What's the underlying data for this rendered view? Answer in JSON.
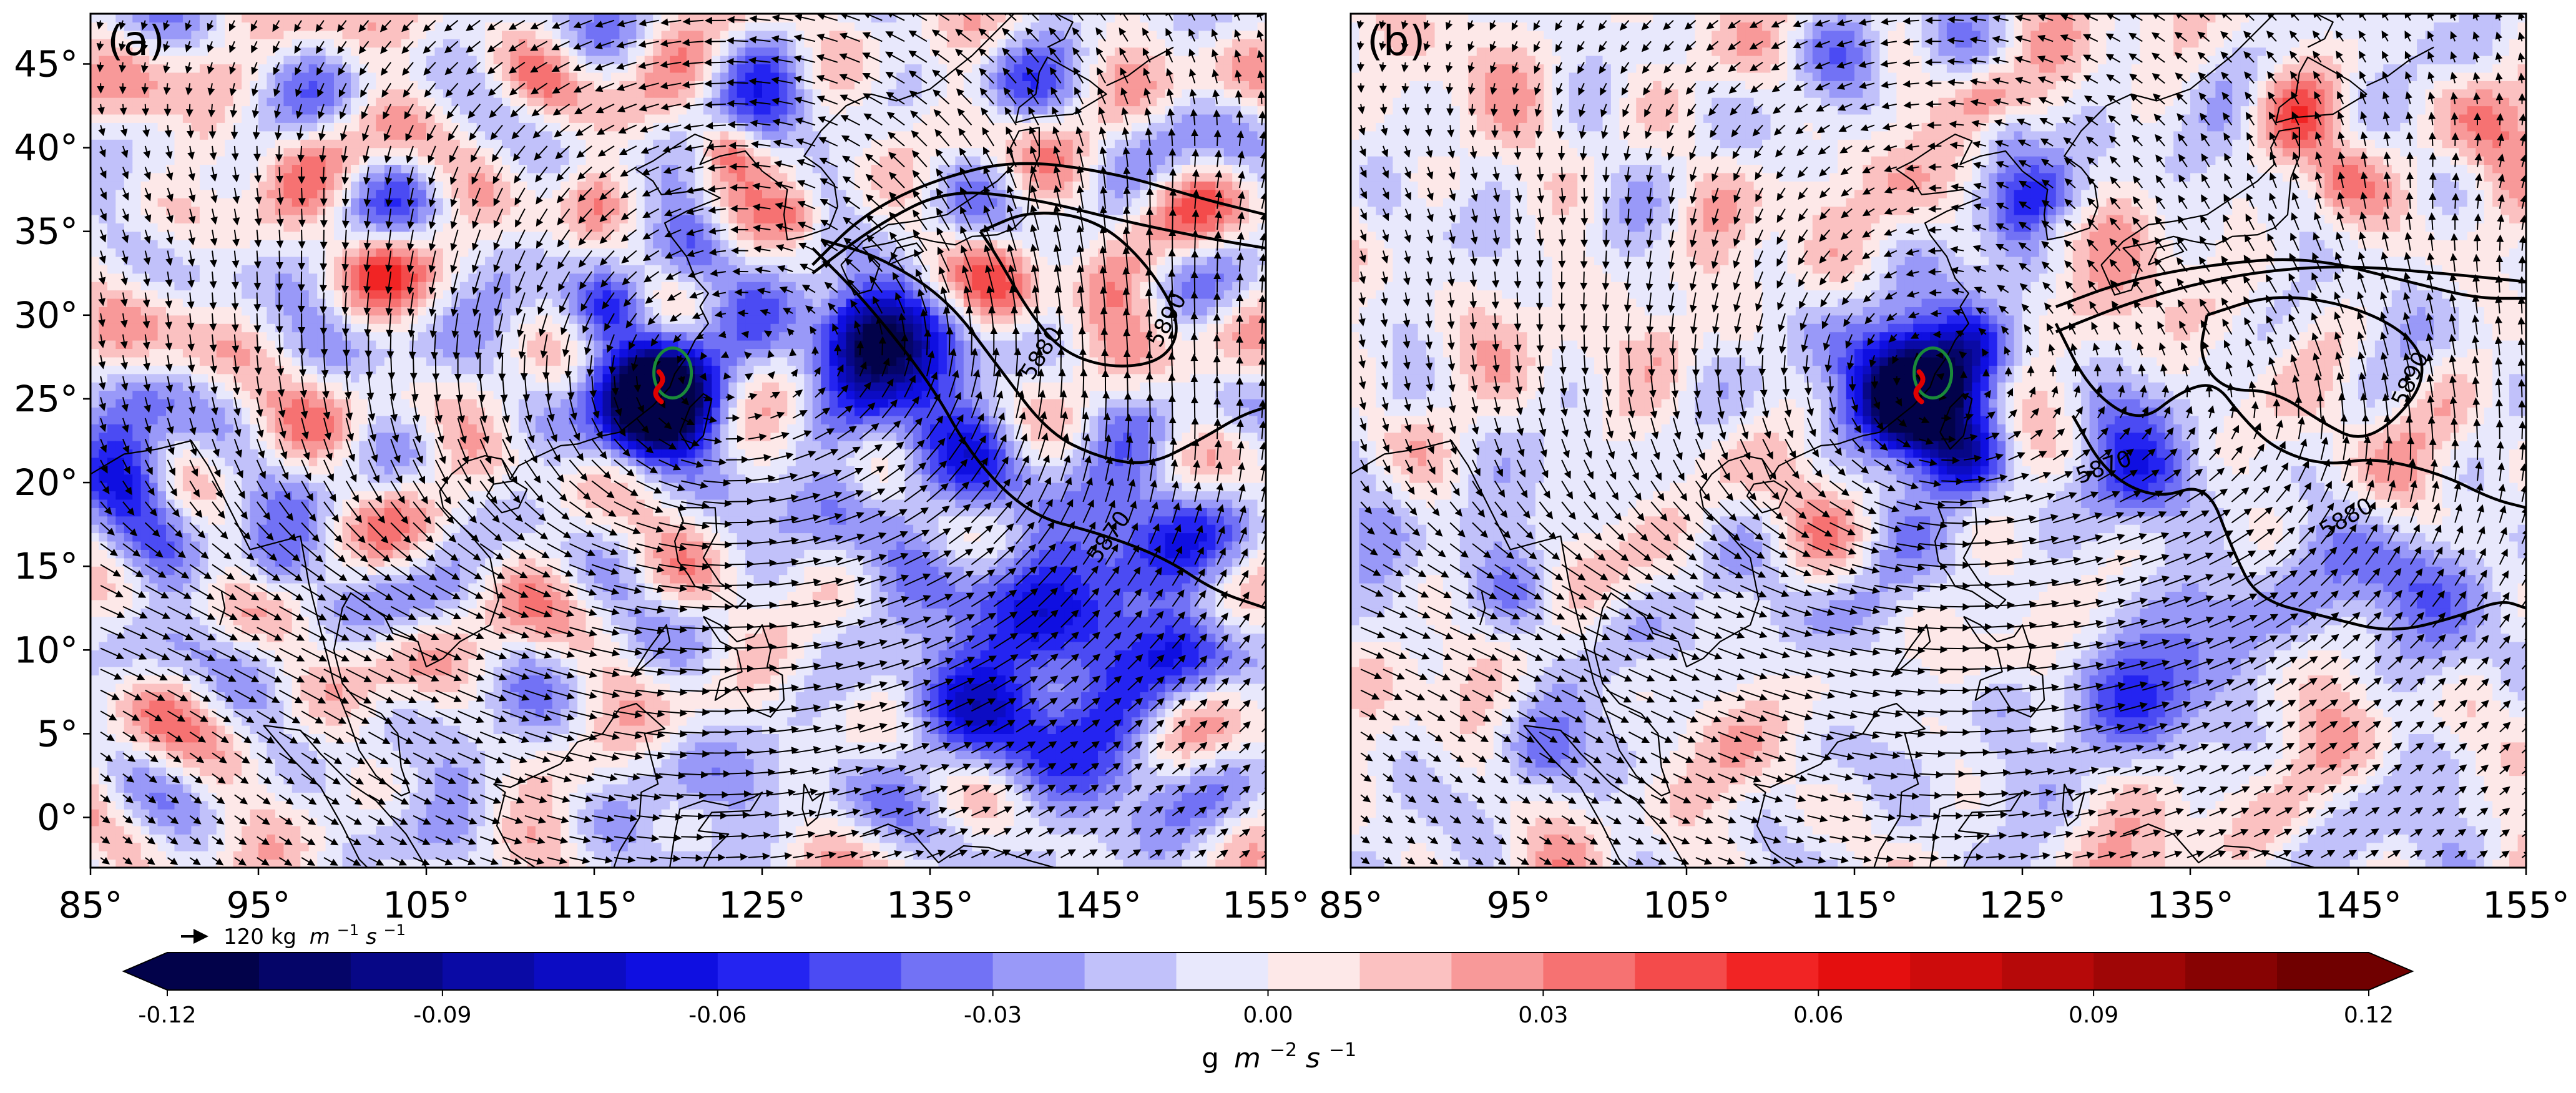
{
  "chart_data": [
    {
      "type": "heatmap",
      "panel_label": "(a)",
      "description_field": "shaded: moisture flux divergence; vectors: vertically integrated moisture flux; contours: geopotential height",
      "x_ticks": [
        "85°",
        "95°",
        "105°",
        "115°",
        "125°",
        "135°",
        "145°",
        "155°"
      ],
      "x_tick_values": [
        85,
        95,
        105,
        115,
        125,
        135,
        145,
        155
      ],
      "y_ticks": [
        "0°",
        "5°",
        "10°",
        "15°",
        "20°",
        "25°",
        "30°",
        "35°",
        "40°",
        "45°"
      ],
      "y_tick_values": [
        0,
        5,
        10,
        15,
        20,
        25,
        30,
        35,
        40,
        45
      ],
      "xlim": [
        85,
        155
      ],
      "ylim": [
        -3,
        48
      ],
      "contour_labels": [
        {
          "text": "5890",
          "lon": 149.5,
          "lat": 29.5,
          "angle": -62
        },
        {
          "text": "5880",
          "lon": 142.0,
          "lat": 27.5,
          "angle": -58
        },
        {
          "text": "5870",
          "lon": 146.0,
          "lat": 16.5,
          "angle": -55
        }
      ],
      "contours": [
        [
          [
            128,
            33
          ],
          [
            131,
            36
          ],
          [
            135,
            38
          ],
          [
            140,
            39.3
          ],
          [
            146,
            38.5
          ],
          [
            151,
            37
          ],
          [
            155,
            36
          ]
        ],
        [
          [
            128,
            32.5
          ],
          [
            132,
            35.5
          ],
          [
            136,
            37.5
          ],
          [
            141,
            37
          ],
          [
            147,
            35.5
          ],
          [
            152,
            34.5
          ],
          [
            155,
            34
          ]
        ],
        [
          [
            138,
            35
          ],
          [
            141,
            36.3
          ],
          [
            145,
            35.7
          ],
          [
            148,
            33
          ],
          [
            150,
            29.5
          ],
          [
            149,
            27.3
          ],
          [
            146,
            26.8
          ],
          [
            143,
            27.7
          ],
          [
            141,
            30
          ],
          [
            139,
            33.5
          ],
          [
            138,
            35
          ]
        ],
        [
          [
            128,
            34
          ],
          [
            131,
            31
          ],
          [
            135,
            26
          ],
          [
            137.5,
            21.5
          ],
          [
            141,
            18
          ],
          [
            145,
            17
          ],
          [
            149,
            15.5
          ],
          [
            152,
            13.5
          ],
          [
            155,
            12.5
          ]
        ],
        [
          [
            128.5,
            34.5
          ],
          [
            132,
            33.5
          ],
          [
            136,
            31
          ],
          [
            139,
            27
          ],
          [
            142,
            23
          ],
          [
            145,
            21.5
          ],
          [
            148,
            21
          ],
          [
            151,
            22.5
          ],
          [
            153.5,
            24
          ],
          [
            155,
            24.5
          ]
        ]
      ],
      "blobs": [
        {
          "lon": 119,
          "lat": 25.5,
          "r": 4.5,
          "v": -0.1
        },
        {
          "lon": 118.5,
          "lat": 25.0,
          "r": 2.5,
          "v": -0.12
        },
        {
          "lon": 133,
          "lat": 27.5,
          "r": 5,
          "v": -0.06
        },
        {
          "lon": 131,
          "lat": 29,
          "r": 3,
          "v": -0.08
        },
        {
          "lon": 136,
          "lat": 22,
          "r": 4,
          "v": -0.04
        },
        {
          "lon": 142,
          "lat": 12,
          "r": 7,
          "v": -0.04
        },
        {
          "lon": 148,
          "lat": 17,
          "r": 5,
          "v": -0.045
        },
        {
          "lon": 138,
          "lat": 7,
          "r": 7,
          "v": -0.035
        },
        {
          "lon": 146,
          "lat": 3,
          "r": 5,
          "v": -0.035
        },
        {
          "lon": 150,
          "lat": 10,
          "r": 3,
          "v": -0.04
        },
        {
          "lon": 125,
          "lat": 42,
          "r": 3,
          "v": -0.04
        },
        {
          "lon": 121,
          "lat": 34,
          "r": 2.5,
          "v": -0.035
        },
        {
          "lon": 129,
          "lat": 18,
          "r": 3,
          "v": -0.03
        },
        {
          "lon": 87,
          "lat": 20.5,
          "r": 3.2,
          "v": -0.07
        },
        {
          "lon": 89,
          "lat": 16,
          "r": 3,
          "v": -0.03
        },
        {
          "lon": 96,
          "lat": 15,
          "r": 2.5,
          "v": -0.04
        },
        {
          "lon": 110,
          "lat": 30,
          "r": 3,
          "v": -0.02
        },
        {
          "lon": 116,
          "lat": 30.5,
          "r": 2,
          "v": -0.03
        },
        {
          "lon": 122,
          "lat": 1,
          "r": 4,
          "v": -0.03
        },
        {
          "lon": 107,
          "lat": 2,
          "r": 4,
          "v": -0.02
        },
        {
          "lon": 140,
          "lat": 44,
          "r": 3,
          "v": -0.03
        },
        {
          "lon": 123,
          "lat": 40,
          "r": 2,
          "v": 0.04
        },
        {
          "lon": 139,
          "lat": 31.5,
          "r": 3,
          "v": 0.03
        },
        {
          "lon": 146,
          "lat": 32,
          "r": 3,
          "v": 0.025
        },
        {
          "lon": 115,
          "lat": 37,
          "r": 2,
          "v": 0.02
        },
        {
          "lon": 92,
          "lat": 40,
          "r": 2,
          "v": 0.02
        },
        {
          "lon": 102,
          "lat": 33,
          "r": 2.5,
          "v": 0.015
        },
        {
          "lon": 127,
          "lat": 36,
          "r": 1.5,
          "v": 0.025
        },
        {
          "lon": 112,
          "lat": 44,
          "r": 2,
          "v": 0.015
        },
        {
          "lon": 150,
          "lat": 5,
          "r": 2.5,
          "v": 0.015
        }
      ],
      "cyclones": [
        {
          "lon": 119,
          "lat": 25.5,
          "R": 14,
          "s": 1.0
        },
        {
          "lon": 133,
          "lat": 28,
          "R": 9,
          "s": 0.6
        }
      ],
      "storm_marker": {
        "lon": 119,
        "lat": 25.5
      },
      "seed": 7
    },
    {
      "type": "heatmap",
      "panel_label": "(b)",
      "x_ticks": [
        "85°",
        "95°",
        "105°",
        "115°",
        "125°",
        "135°",
        "145°",
        "155°"
      ],
      "x_tick_values": [
        85,
        95,
        105,
        115,
        125,
        135,
        145,
        155
      ],
      "y_ticks": [],
      "y_tick_values": [],
      "xlim": [
        85,
        155
      ],
      "ylim": [
        -3,
        48
      ],
      "contour_labels": [
        {
          "text": "5890",
          "lon": 148.5,
          "lat": 26.0,
          "angle": -65
        },
        {
          "text": "5870",
          "lon": 130.0,
          "lat": 20.5,
          "angle": -20
        },
        {
          "text": "5880",
          "lon": 144.5,
          "lat": 17.5,
          "angle": -30
        }
      ],
      "contours": [
        [
          [
            127,
            29
          ],
          [
            132,
            31
          ],
          [
            138,
            32.5
          ],
          [
            144,
            33
          ],
          [
            150,
            32.5
          ],
          [
            155,
            32
          ]
        ],
        [
          [
            127,
            30.5
          ],
          [
            131,
            32
          ],
          [
            136,
            33
          ],
          [
            142,
            33.5
          ],
          [
            148,
            32
          ],
          [
            152,
            31
          ],
          [
            155,
            31
          ]
        ],
        [
          [
            136,
            30
          ],
          [
            140,
            31.3
          ],
          [
            145,
            30.5
          ],
          [
            148.5,
            28.5
          ],
          [
            149,
            26
          ],
          [
            147,
            23.5
          ],
          [
            145,
            22.5
          ],
          [
            143,
            23.5
          ],
          [
            140,
            25.5
          ],
          [
            137,
            25.5
          ],
          [
            135.5,
            27.5
          ],
          [
            136,
            30
          ]
        ],
        [
          [
            127,
            29.5
          ],
          [
            129,
            25.5
          ],
          [
            132,
            23.5
          ],
          [
            134.5,
            25.5
          ],
          [
            136.5,
            26
          ],
          [
            138,
            24
          ],
          [
            140,
            22
          ],
          [
            143,
            21
          ],
          [
            146,
            21.5
          ],
          [
            150,
            20.5
          ],
          [
            153,
            19
          ],
          [
            155,
            18.5
          ]
        ],
        [
          [
            128,
            24
          ],
          [
            130,
            20.5
          ],
          [
            133,
            19
          ],
          [
            136,
            20
          ],
          [
            137.5,
            16
          ],
          [
            139,
            13
          ],
          [
            143,
            12
          ],
          [
            147,
            11
          ],
          [
            151,
            12
          ],
          [
            153.5,
            13
          ],
          [
            155,
            12.5
          ]
        ]
      ],
      "blobs": [
        {
          "lon": 119,
          "lat": 25.5,
          "r": 4.5,
          "v": -0.11
        },
        {
          "lon": 118.5,
          "lat": 25.0,
          "r": 2.5,
          "v": -0.12
        },
        {
          "lon": 122,
          "lat": 28,
          "r": 2.5,
          "v": -0.05
        },
        {
          "lon": 121.5,
          "lat": 21.5,
          "r": 2.5,
          "v": -0.05
        },
        {
          "lon": 132,
          "lat": 20,
          "r": 3.5,
          "v": -0.05
        },
        {
          "lon": 136,
          "lat": 13,
          "r": 4.5,
          "v": -0.04
        },
        {
          "lon": 131,
          "lat": 7,
          "r": 4,
          "v": -0.035
        },
        {
          "lon": 148,
          "lat": 14,
          "r": 4,
          "v": -0.035
        },
        {
          "lon": 150,
          "lat": 9,
          "r": 3,
          "v": -0.03
        },
        {
          "lon": 126,
          "lat": 37,
          "r": 3,
          "v": -0.035
        },
        {
          "lon": 124,
          "lat": 41,
          "r": 2,
          "v": -0.03
        },
        {
          "lon": 87,
          "lat": 17,
          "r": 3,
          "v": -0.03
        },
        {
          "lon": 95,
          "lat": 13,
          "r": 3,
          "v": -0.03
        },
        {
          "lon": 101,
          "lat": 11,
          "r": 3,
          "v": -0.025
        },
        {
          "lon": 96,
          "lat": 4,
          "r": 2.5,
          "v": -0.025
        },
        {
          "lon": 116,
          "lat": 13,
          "r": 3,
          "v": -0.025
        },
        {
          "lon": 118,
          "lat": 3,
          "r": 3,
          "v": -0.02
        },
        {
          "lon": 124,
          "lat": 7,
          "r": 2.5,
          "v": -0.03
        },
        {
          "lon": 88,
          "lat": 25,
          "r": 2,
          "v": -0.02
        },
        {
          "lon": 120,
          "lat": 46,
          "r": 2.5,
          "v": -0.025
        },
        {
          "lon": 153,
          "lat": 42,
          "r": 3,
          "v": 0.025
        },
        {
          "lon": 141,
          "lat": 42,
          "r": 2.5,
          "v": 0.025
        },
        {
          "lon": 127,
          "lat": 35,
          "r": 2,
          "v": 0.025
        },
        {
          "lon": 123,
          "lat": 43,
          "r": 2,
          "v": 0.02
        },
        {
          "lon": 112,
          "lat": 37,
          "r": 2,
          "v": 0.015
        },
        {
          "lon": 90,
          "lat": 38,
          "r": 2,
          "v": 0.015
        },
        {
          "lon": 104,
          "lat": 28,
          "r": 2,
          "v": 0.015
        },
        {
          "lon": 144,
          "lat": 38,
          "r": 2,
          "v": 0.02
        }
      ],
      "cyclones": [
        {
          "lon": 119,
          "lat": 25.5,
          "R": 14,
          "s": 1.0
        },
        {
          "lon": 140,
          "lat": 24,
          "R": 7,
          "s": 0.45
        }
      ],
      "storm_marker": {
        "lon": 119,
        "lat": 25.5
      },
      "seed": 13
    }
  ],
  "reference_vector": {
    "value": 120,
    "label_text": "120 kg",
    "label_unit": "m",
    "label_sup1": "−1",
    "label_s": "s",
    "label_sup2": "−1"
  },
  "colorbar": {
    "vmin": -0.12,
    "vmax": 0.12,
    "levels": 24,
    "ticks": [
      "-0.12",
      "-0.09",
      "-0.06",
      "-0.03",
      "0.00",
      "0.03",
      "0.06",
      "0.09",
      "0.12"
    ],
    "tick_values": [
      -0.12,
      -0.09,
      -0.06,
      -0.03,
      0.0,
      0.03,
      0.06,
      0.09,
      0.12
    ],
    "label_g": "g",
    "label_m": "m",
    "label_sup1": "−2",
    "label_s": "s",
    "label_sup2": "−1",
    "extend": "both"
  },
  "colors": {
    "neg_strong": "#02024a",
    "neg_mid": "#1010f0",
    "neg_weak": "#e8e8fc",
    "pos_weak": "#fde8e8",
    "pos_mid": "#f01010",
    "pos_strong": "#700000",
    "storm_marker": "#e00000",
    "storm_circle": "#1a8a3a"
  }
}
